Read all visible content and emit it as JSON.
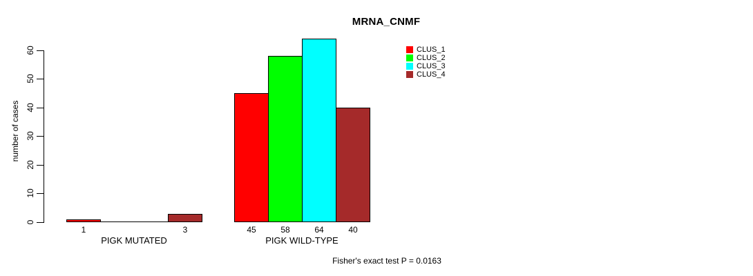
{
  "chart_data": {
    "type": "bar",
    "title": "MRNA_CNMF",
    "ylabel": "number of cases",
    "xlabel": "",
    "ylim": [
      0,
      60
    ],
    "yticks": [
      0,
      10,
      20,
      30,
      40,
      50,
      60
    ],
    "grid": false,
    "legend_position": "top-right",
    "series": [
      {
        "name": "CLUS_1",
        "color": "#FF0000"
      },
      {
        "name": "CLUS_2",
        "color": "#00FF00"
      },
      {
        "name": "CLUS_3",
        "color": "#00FFFF"
      },
      {
        "name": "CLUS_4",
        "color": "#A52A2A"
      }
    ],
    "groups": [
      {
        "label": "PIGK MUTATED",
        "values": [
          1,
          0,
          0,
          3
        ],
        "bar_labels": [
          "1",
          "",
          "",
          "3"
        ]
      },
      {
        "label": "PIGK WILD-TYPE",
        "values": [
          45,
          58,
          64,
          40
        ],
        "bar_labels": [
          "45",
          "58",
          "64",
          "40"
        ]
      }
    ],
    "annotation": "Fisher's exact test P = 0.0163"
  }
}
